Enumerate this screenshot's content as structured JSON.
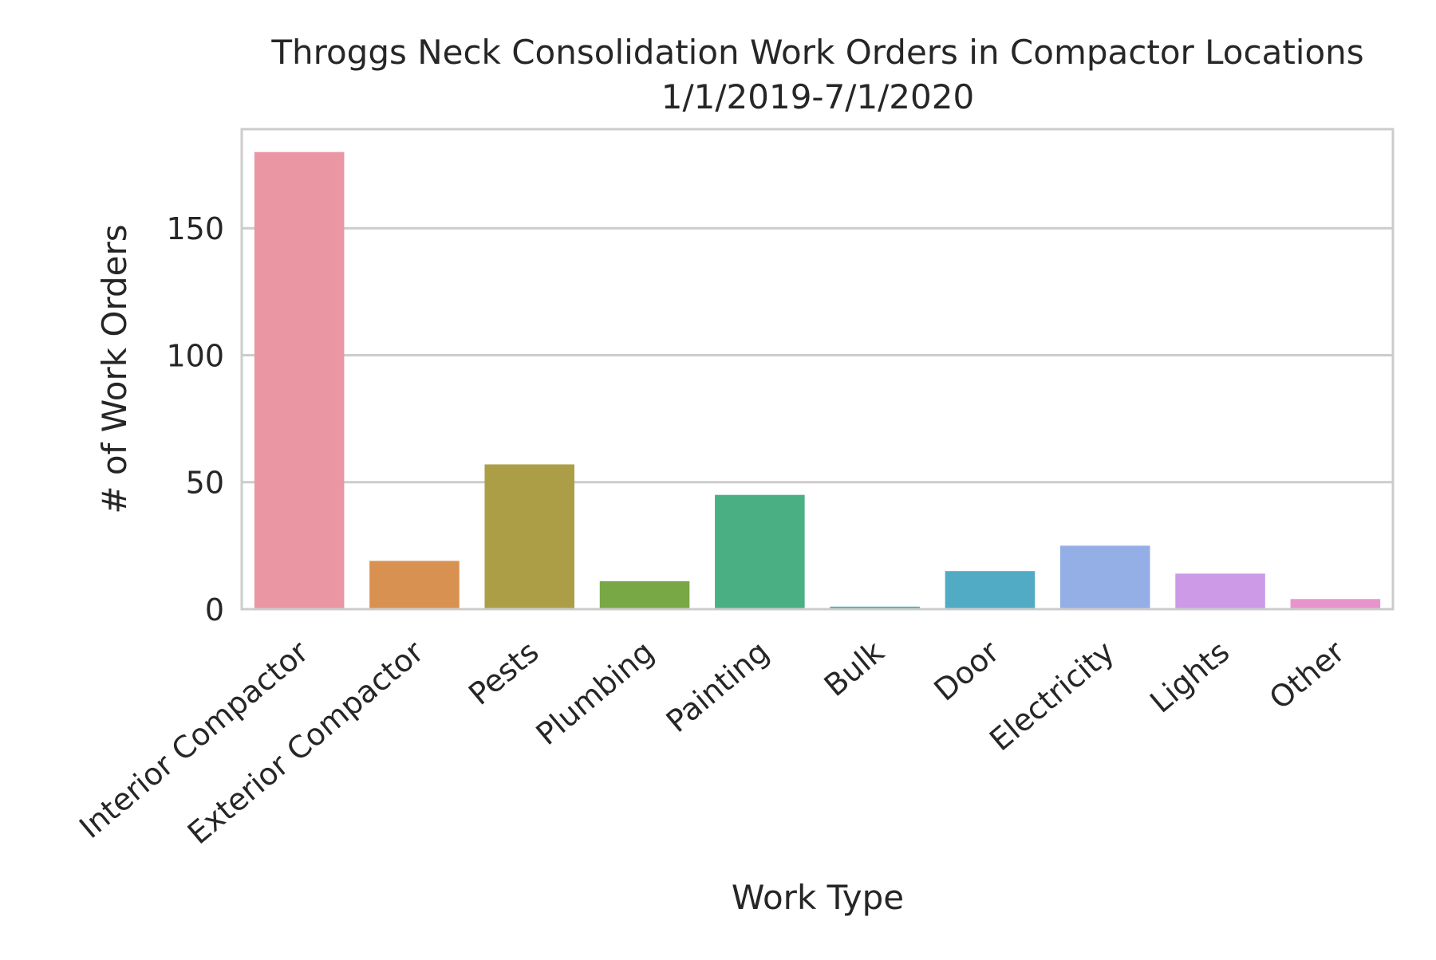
{
  "chart_data": {
    "type": "bar",
    "title": "Throggs Neck Consolidation Work Orders in Compactor Locations",
    "subtitle": "1/1/2019-7/1/2020",
    "xlabel": "Work Type",
    "ylabel": "# of Work Orders",
    "categories": [
      "Interior Compactor",
      "Exterior Compactor",
      "Pests",
      "Plumbing",
      "Painting",
      "Bulk",
      "Door",
      "Electricity",
      "Lights",
      "Other"
    ],
    "values": [
      180,
      19,
      57,
      11,
      45,
      1,
      15,
      25,
      14,
      4
    ],
    "colors": [
      "#ea96a3",
      "#d89150",
      "#ab9e47",
      "#78a845",
      "#4ab084",
      "#4cadad",
      "#52abc4",
      "#93afe6",
      "#cc9ae7",
      "#e894cc"
    ],
    "ylim": [
      0,
      189
    ],
    "yticks": [
      0,
      50,
      100,
      150
    ],
    "grid": true,
    "legend": "none"
  }
}
